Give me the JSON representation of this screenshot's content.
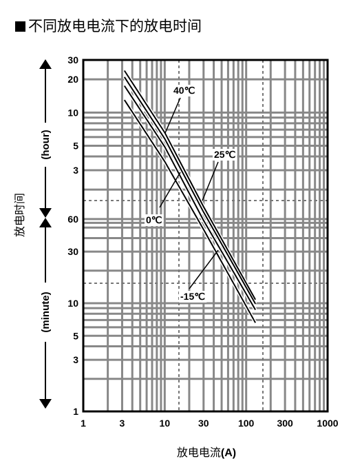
{
  "title": "不同放电电流下的放电时间",
  "chart_data": {
    "type": "line",
    "xscale": "log",
    "yscale": "log",
    "xlim": [
      1,
      1000
    ],
    "xticks": [
      "1",
      "3",
      "10",
      "30",
      "100",
      "300",
      "1000"
    ],
    "xlabel": "放电电流(A)",
    "ylabel": "放电时间",
    "y_hour_ticks": [
      "30",
      "20",
      "10",
      "5",
      "3"
    ],
    "y_minute_ticks": [
      "60",
      "30",
      "10",
      "5",
      "3",
      "1"
    ],
    "y_hour_label": "(hour)",
    "y_minute_label": "(minute)",
    "grid": true,
    "series": [
      {
        "name": "40℃",
        "x": [
          3.2,
          10,
          30,
          130
        ],
        "y_hours": [
          24,
          6.6,
          1.4,
          0.18
        ]
      },
      {
        "name": "25℃",
        "x": [
          3.2,
          10,
          30,
          130
        ],
        "y_hours": [
          21,
          5.8,
          1.25,
          0.165
        ]
      },
      {
        "name": "0℃",
        "x": [
          3.2,
          10,
          30,
          130
        ],
        "y_hours": [
          17.5,
          4.9,
          1.05,
          0.145
        ]
      },
      {
        "name": "-15℃",
        "x": [
          3.2,
          10,
          30,
          130
        ],
        "y_hours": [
          13,
          3.6,
          0.8,
          0.11
        ]
      }
    ],
    "annotations": [
      "40℃",
      "25℃",
      "0℃",
      "-15℃"
    ]
  }
}
